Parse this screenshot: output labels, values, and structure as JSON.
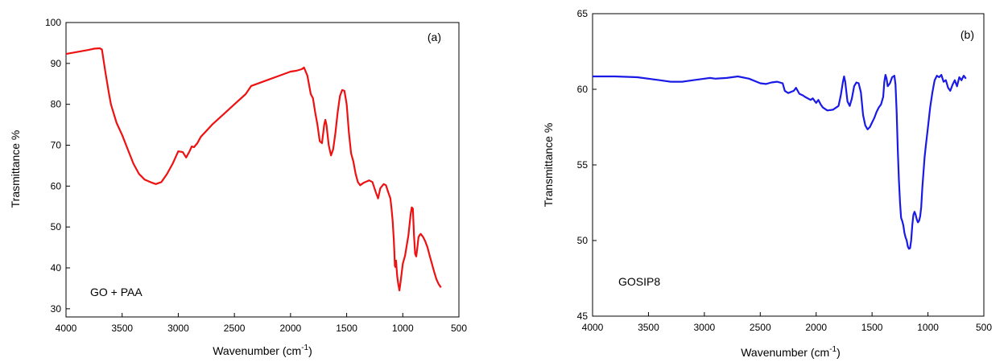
{
  "chart_data": [
    {
      "type": "line",
      "panel_label": "(a)",
      "annotation": "GO + PAA",
      "xlabel": "Wavenumber (cm",
      "xlabel_sup": "-1",
      "xlabel_tail": ")",
      "ylabel": "Trasmittance %",
      "xlim": [
        4000,
        500
      ],
      "ylim": [
        28,
        100
      ],
      "xticks": [
        4000,
        3500,
        3000,
        2500,
        2000,
        1500,
        1000,
        500
      ],
      "yticks": [
        30,
        40,
        50,
        60,
        70,
        80,
        90,
        100
      ],
      "grid": false,
      "color": "#ee1111",
      "series": [
        {
          "x": [
            4000,
            3900,
            3800,
            3750,
            3700,
            3680,
            3650,
            3620,
            3600,
            3550,
            3500,
            3450,
            3400,
            3350,
            3300,
            3250,
            3200,
            3150,
            3100,
            3050,
            3000,
            2960,
            2930,
            2900,
            2880,
            2860,
            2830,
            2800,
            2700,
            2600,
            2500,
            2400,
            2350,
            2300,
            2200,
            2100,
            2000,
            1950,
            1900,
            1880,
            1850,
            1820,
            1800,
            1780,
            1760,
            1740,
            1720,
            1700,
            1690,
            1680,
            1660,
            1640,
            1620,
            1600,
            1580,
            1560,
            1540,
            1520,
            1500,
            1480,
            1460,
            1440,
            1420,
            1400,
            1380,
            1350,
            1300,
            1270,
            1240,
            1220,
            1200,
            1170,
            1150,
            1130,
            1110,
            1100,
            1090,
            1080,
            1075,
            1070,
            1065,
            1060,
            1050,
            1040,
            1030,
            1020,
            1000,
            980,
            950,
            930,
            920,
            910,
            900,
            890,
            880,
            870,
            860,
            850,
            840,
            820,
            800,
            780,
            760,
            740,
            720,
            700,
            680,
            660
          ],
          "y": [
            92.3,
            92.8,
            93.3,
            93.6,
            93.7,
            93.4,
            88,
            83,
            80,
            75.5,
            72.5,
            69,
            65.5,
            63,
            61.6,
            61,
            60.5,
            61,
            63,
            65.5,
            68.5,
            68.3,
            67,
            68.5,
            69.7,
            69.5,
            70.5,
            72,
            75,
            77.5,
            80,
            82.5,
            84.5,
            85,
            86,
            87,
            88,
            88.2,
            88.6,
            89,
            87,
            82.5,
            81.5,
            78,
            75,
            71,
            70.5,
            75,
            76.2,
            75,
            70,
            67.5,
            69,
            73,
            78,
            82,
            83.5,
            83.3,
            80,
            73,
            68,
            66,
            63,
            61,
            60.2,
            60.8,
            61.4,
            61,
            58.5,
            57,
            59.5,
            60.5,
            60.2,
            58.5,
            57,
            54.5,
            51.5,
            47,
            44,
            40.5,
            40.2,
            41.8,
            38,
            36,
            34.5,
            36.5,
            41,
            43,
            48,
            53,
            54.8,
            54.5,
            48,
            43.5,
            42.8,
            45,
            47.5,
            48,
            48.3,
            47.6,
            46.5,
            45,
            43,
            41,
            39,
            37.2,
            36,
            35.2
          ]
        }
      ]
    },
    {
      "type": "line",
      "panel_label": "(b)",
      "annotation": "GOSIP8",
      "xlabel": "Wavenumber (cm",
      "xlabel_sup": "-1",
      "xlabel_tail": ")",
      "ylabel": "Transmittance %",
      "xlim": [
        4000,
        500
      ],
      "ylim": [
        45,
        65
      ],
      "xticks": [
        4000,
        3500,
        3000,
        2500,
        2000,
        1500,
        1000,
        500
      ],
      "yticks": [
        45,
        50,
        55,
        60,
        65
      ],
      "grid": false,
      "color": "#1a1ae6",
      "series": [
        {
          "x": [
            4000,
            3800,
            3600,
            3400,
            3300,
            3200,
            3100,
            3000,
            2950,
            2900,
            2800,
            2700,
            2600,
            2500,
            2450,
            2400,
            2350,
            2300,
            2280,
            2250,
            2200,
            2180,
            2150,
            2120,
            2100,
            2050,
            2030,
            2000,
            1980,
            1960,
            1940,
            1900,
            1850,
            1800,
            1780,
            1760,
            1750,
            1740,
            1720,
            1700,
            1680,
            1660,
            1640,
            1620,
            1600,
            1580,
            1560,
            1540,
            1520,
            1500,
            1480,
            1460,
            1440,
            1420,
            1400,
            1390,
            1380,
            1370,
            1360,
            1340,
            1320,
            1300,
            1290,
            1280,
            1270,
            1260,
            1250,
            1240,
            1230,
            1220,
            1210,
            1200,
            1190,
            1180,
            1170,
            1160,
            1150,
            1140,
            1130,
            1120,
            1110,
            1100,
            1090,
            1080,
            1070,
            1060,
            1050,
            1040,
            1030,
            1020,
            1000,
            980,
            960,
            940,
            920,
            900,
            880,
            860,
            840,
            820,
            800,
            780,
            760,
            740,
            720,
            700,
            680,
            660
          ],
          "y": [
            60.85,
            60.85,
            60.8,
            60.6,
            60.5,
            60.5,
            60.6,
            60.7,
            60.75,
            60.7,
            60.75,
            60.85,
            60.7,
            60.4,
            60.35,
            60.45,
            60.5,
            60.4,
            59.9,
            59.75,
            59.9,
            60.1,
            59.7,
            59.6,
            59.5,
            59.3,
            59.4,
            59.1,
            59.3,
            59.0,
            58.8,
            58.6,
            58.65,
            58.9,
            59.6,
            60.5,
            60.85,
            60.5,
            59.2,
            58.9,
            59.4,
            60.2,
            60.45,
            60.4,
            59.8,
            58.3,
            57.6,
            57.35,
            57.5,
            57.8,
            58.1,
            58.5,
            58.8,
            59.0,
            59.5,
            60.5,
            60.95,
            60.7,
            60.2,
            60.4,
            60.8,
            60.9,
            60.3,
            58.5,
            56,
            54,
            52.5,
            51.5,
            51.3,
            51,
            50.5,
            50.2,
            50,
            49.6,
            49.45,
            49.5,
            50,
            51,
            51.7,
            51.9,
            51.7,
            51.4,
            51.2,
            51.3,
            51.6,
            52.2,
            53.5,
            54.5,
            55.5,
            56.2,
            57.5,
            58.8,
            59.8,
            60.6,
            60.9,
            60.8,
            60.95,
            60.5,
            60.6,
            60.1,
            59.9,
            60.3,
            60.6,
            60.2,
            60.8,
            60.6,
            60.9,
            60.7
          ]
        }
      ]
    }
  ]
}
